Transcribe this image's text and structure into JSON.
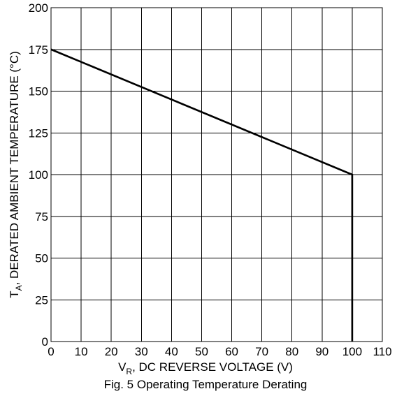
{
  "chart_data": {
    "type": "line",
    "title": "",
    "caption": "Fig. 5 Operating Temperature Derating",
    "xlabel": {
      "main": "V",
      "sub": "R",
      "rest": ", DC REVERSE VOLTAGE (V)"
    },
    "ylabel": {
      "main": "T",
      "sub": "A",
      "rest": ", DERATED AMBIENT TEMPERATURE (°C)"
    },
    "xlim": [
      0,
      110
    ],
    "ylim": [
      0,
      200
    ],
    "x_ticks": [
      0,
      10,
      20,
      30,
      40,
      50,
      60,
      70,
      80,
      90,
      100,
      110
    ],
    "y_ticks": [
      0,
      25,
      50,
      75,
      100,
      125,
      150,
      175,
      200
    ],
    "grid": true,
    "series": [
      {
        "x": [
          0,
          100,
          100
        ],
        "y": [
          175,
          100,
          0
        ]
      }
    ]
  }
}
